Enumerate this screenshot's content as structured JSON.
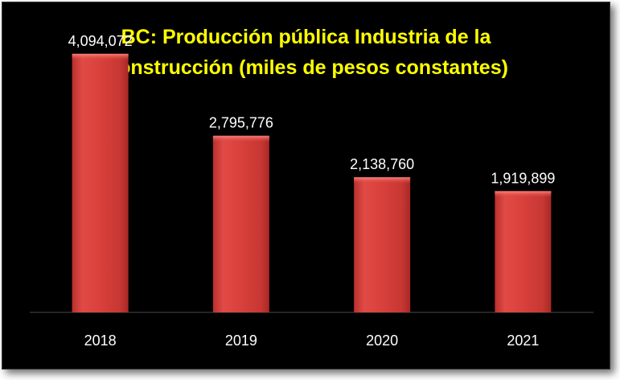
{
  "chart_data": {
    "type": "bar",
    "title_lines": [
      "BC: Producción pública Industria de la",
      "Construcción (miles de pesos constantes)"
    ],
    "categories": [
      "2018",
      "2019",
      "2020",
      "2021"
    ],
    "values": [
      4094072,
      2795776,
      2138760,
      1919899
    ],
    "data_labels": [
      "4,094,072",
      "2,795,776",
      "2,138,760",
      "1,919,899"
    ],
    "xlabel": "",
    "ylabel": "",
    "ylim": [
      0,
      4500000
    ],
    "y_axis_visible": false,
    "grid": false,
    "legend": "none",
    "colors": {
      "background": "#000000",
      "title": "#ffff00",
      "bar": "#d9403c",
      "text": "#ffffff"
    }
  }
}
